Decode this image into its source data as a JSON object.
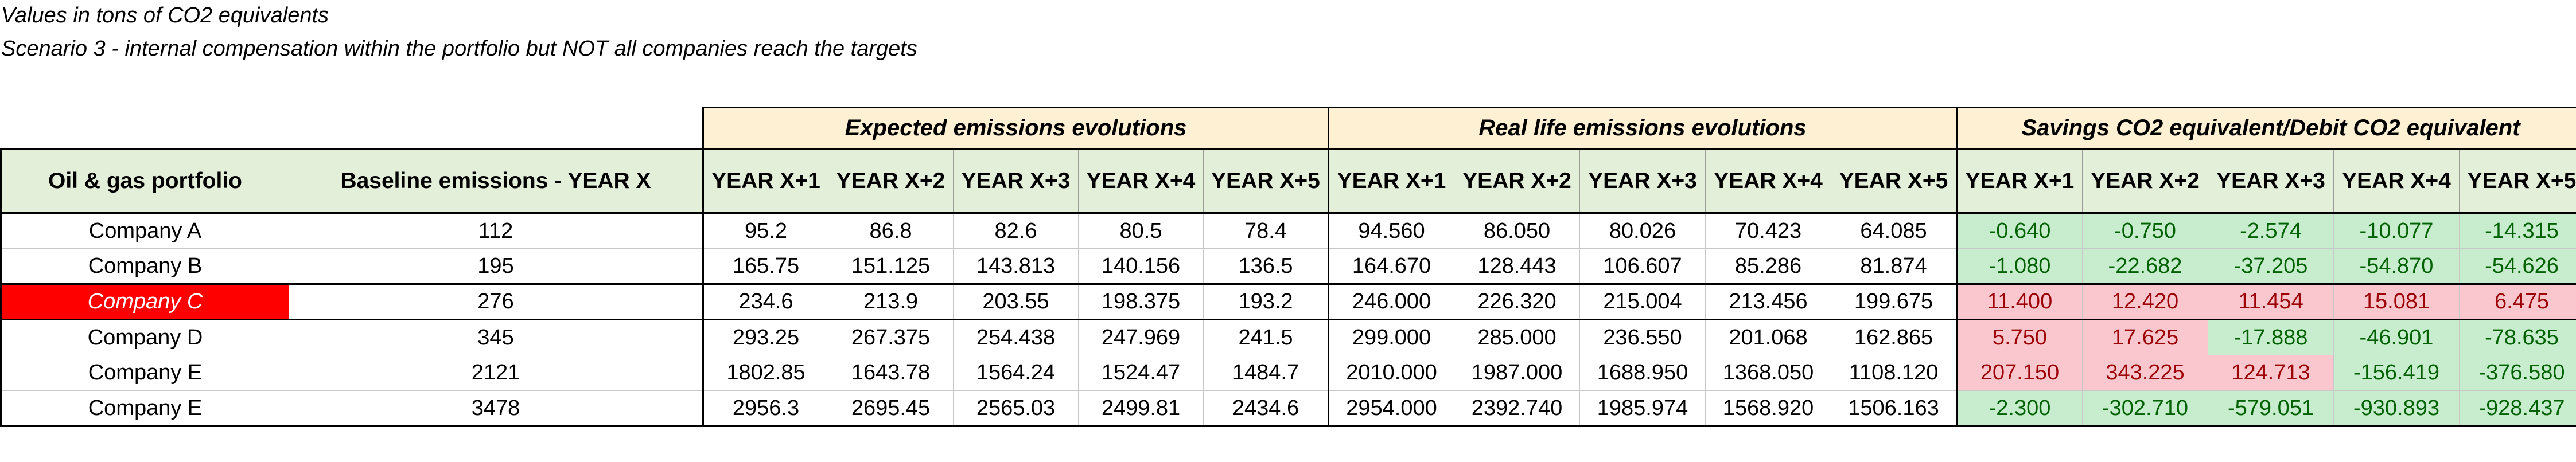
{
  "notes": {
    "units": "Values in tons of CO2 equivalents",
    "scenario": "Scenario 3  - internal compensation within the portfolio but NOT all companies reach the targets"
  },
  "groups": {
    "expected": "Expected emissions evolutions",
    "real": "Real life emissions evolutions",
    "savings": "Savings CO2 equivalent/Debit CO2 equivalent"
  },
  "headers": {
    "portfolio": "Oil & gas portfolio",
    "baseline": "Baseline emissions - YEAR X",
    "years": [
      "YEAR X+1",
      "YEAR X+2",
      "YEAR X+3",
      "YEAR X+4",
      "YEAR X+5"
    ]
  },
  "colors": {
    "group_header_bg": "#fdf0d3",
    "column_header_bg": "#e4efda",
    "debit_bg": "#f9c7cd",
    "debit_text": "#9c0006",
    "saving_bg": "#c7ecce",
    "saving_text": "#006100",
    "highlight_company_bg": "#ff0000"
  },
  "rows": [
    {
      "company": "Company A",
      "baseline": "112",
      "expected": [
        "95.2",
        "86.8",
        "82.6",
        "80.5",
        "78.4"
      ],
      "real": [
        "94.560",
        "86.050",
        "80.026",
        "70.423",
        "64.085"
      ],
      "savings": [
        "-0.640",
        "-0.750",
        "-2.574",
        "-10.077",
        "-14.315"
      ]
    },
    {
      "company": "Company B",
      "baseline": "195",
      "expected": [
        "165.75",
        "151.125",
        "143.813",
        "140.156",
        "136.5"
      ],
      "real": [
        "164.670",
        "128.443",
        "106.607",
        "85.286",
        "81.874"
      ],
      "savings": [
        "-1.080",
        "-22.682",
        "-37.205",
        "-54.870",
        "-54.626"
      ]
    },
    {
      "company": "Company C",
      "baseline": "276",
      "highlight": true,
      "expected": [
        "234.6",
        "213.9",
        "203.55",
        "198.375",
        "193.2"
      ],
      "real": [
        "246.000",
        "226.320",
        "215.004",
        "213.456",
        "199.675"
      ],
      "savings": [
        "11.400",
        "12.420",
        "11.454",
        "15.081",
        "6.475"
      ]
    },
    {
      "company": "Company D",
      "baseline": "345",
      "expected": [
        "293.25",
        "267.375",
        "254.438",
        "247.969",
        "241.5"
      ],
      "real": [
        "299.000",
        "285.000",
        "236.550",
        "201.068",
        "162.865"
      ],
      "savings": [
        "5.750",
        "17.625",
        "-17.888",
        "-46.901",
        "-78.635"
      ]
    },
    {
      "company": "Company E",
      "baseline": "2121",
      "expected": [
        "1802.85",
        "1643.78",
        "1564.24",
        "1524.47",
        "1484.7"
      ],
      "real": [
        "2010.000",
        "1987.000",
        "1688.950",
        "1368.050",
        "1108.120"
      ],
      "savings": [
        "207.150",
        "343.225",
        "124.713",
        "-156.419",
        "-376.580"
      ]
    },
    {
      "company": "Company E",
      "baseline": "3478",
      "expected": [
        "2956.3",
        "2695.45",
        "2565.03",
        "2499.81",
        "2434.6"
      ],
      "real": [
        "2954.000",
        "2392.740",
        "1985.974",
        "1568.920",
        "1506.163"
      ],
      "savings": [
        "-2.300",
        "-302.710",
        "-579.051",
        "-930.893",
        "-928.437"
      ]
    }
  ]
}
